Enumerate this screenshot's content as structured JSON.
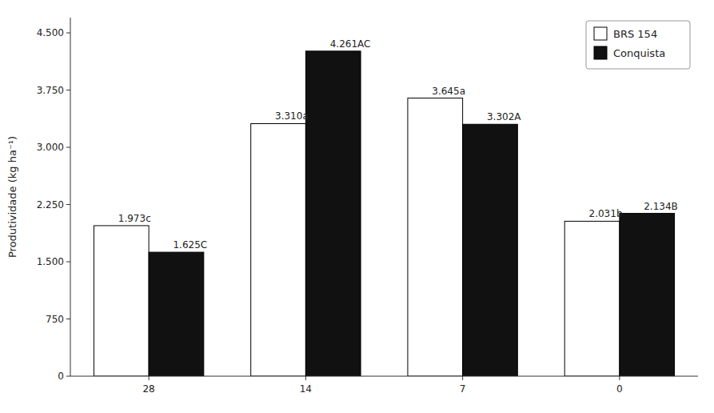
{
  "chart_data": {
    "type": "bar",
    "categories": [
      "28",
      "14",
      "7",
      "0"
    ],
    "series": [
      {
        "name": "BRS 154",
        "color": "#ffffff",
        "values": [
          1973,
          3310,
          3645,
          2031
        ],
        "value_labels": [
          "1.973c",
          "3.310a",
          "3.645a",
          "2.031b"
        ]
      },
      {
        "name": "Conquista",
        "color": "#111111",
        "values": [
          1625,
          4261,
          3302,
          2134
        ],
        "value_labels": [
          "1.625C",
          "4.261AC",
          "3.302A",
          "2.134B"
        ]
      }
    ],
    "y_label": "Produtividade (kg ha⁻¹)",
    "ylim": [
      0,
      4700
    ],
    "yticks": [
      0,
      750,
      {
        "value": 1500,
        "label": "1.500"
      },
      {
        "value": 2250,
        "label": "2.250"
      },
      {
        "value": 3000,
        "label": "3.000"
      },
      {
        "value": 3750,
        "label": "3.750"
      },
      {
        "value": 4500,
        "label": "4.500"
      }
    ],
    "grid": false,
    "legend": "upper right",
    "data_labels": true
  }
}
